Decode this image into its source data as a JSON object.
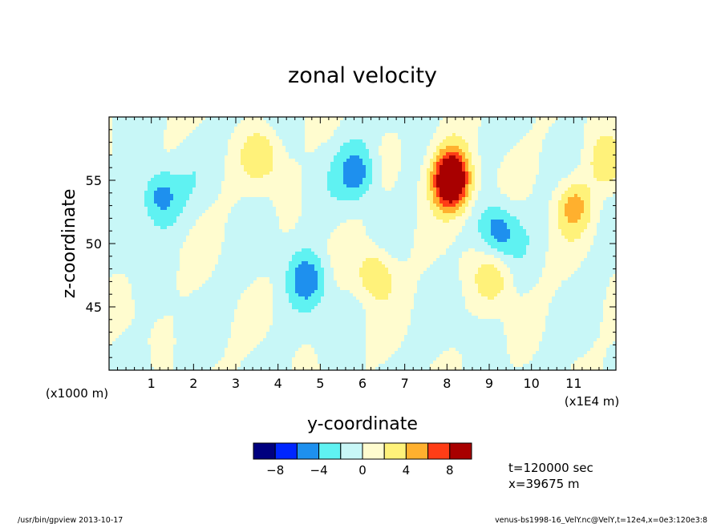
{
  "chart_data": {
    "type": "heatmap",
    "title": "zonal velocity",
    "xlabel": "y-coordinate",
    "ylabel": "z-coordinate",
    "x_unit_note": "(x1E4 m)",
    "y_unit_note": "(x1000 m)",
    "xlim": [
      0,
      12
    ],
    "ylim": [
      40,
      60
    ],
    "x_ticks": [
      1,
      2,
      3,
      4,
      5,
      6,
      7,
      8,
      9,
      10,
      11
    ],
    "y_ticks": [
      45,
      50,
      55
    ],
    "colorbar": {
      "levels": [
        -10,
        -8,
        -6,
        -4,
        -2,
        0,
        2,
        4,
        6,
        8,
        10
      ],
      "tick_labels": [
        "−8",
        "−4",
        "0",
        "4",
        "8"
      ],
      "tick_values": [
        -8,
        -4,
        0,
        4,
        8
      ],
      "colors": [
        "#00007f",
        "#0026ff",
        "#1e90ee",
        "#5ff2f2",
        "#c8f7f7",
        "#fffccf",
        "#fff27a",
        "#ffb02e",
        "#ff3d16",
        "#a80000"
      ]
    },
    "features": [
      {
        "y": 8.1,
        "z": 54.5,
        "value": 9
      },
      {
        "y": 8.1,
        "z": 55.8,
        "value": 7
      },
      {
        "y": 5.9,
        "z": 55.5,
        "value": -5
      },
      {
        "y": 1.2,
        "z": 53.8,
        "value": -5
      },
      {
        "y": 9.2,
        "z": 51.0,
        "value": -5
      },
      {
        "y": 11.0,
        "z": 53.0,
        "value": 5
      },
      {
        "y": 6.3,
        "z": 47.6,
        "value": 5
      },
      {
        "y": 9.1,
        "z": 47.3,
        "value": 4
      },
      {
        "y": 3.6,
        "z": 57.0,
        "value": 4
      },
      {
        "y": 11.8,
        "z": 56.5,
        "value": 4
      },
      {
        "y": 4.7,
        "z": 47.2,
        "value": -5
      }
    ],
    "grid": false
  },
  "info": {
    "time": "t=120000 sec",
    "xpos": "x=39675 m"
  },
  "footer": {
    "left": "/usr/bin/gpview   2013-10-17",
    "right": "venus-bs1998-16_VelY.nc@VelY,t=12e4,x=0e3:120e3:8"
  }
}
